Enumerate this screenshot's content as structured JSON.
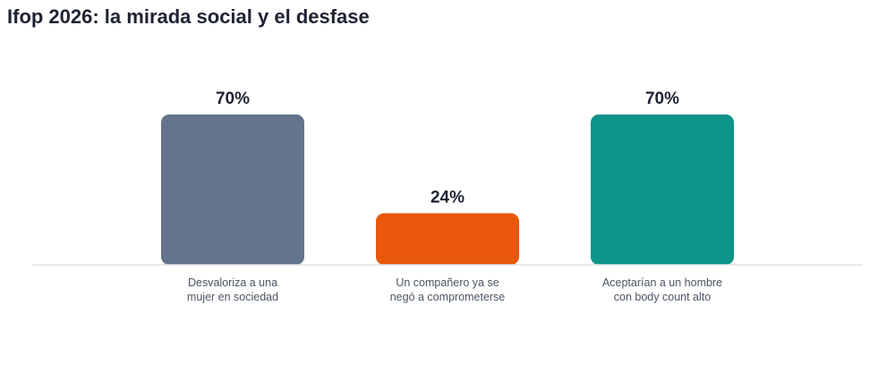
{
  "title": "Ifop 2026: la mirada social y el desfase",
  "chart_data": {
    "type": "bar",
    "title": "Ifop 2026: la mirada social y el desfase",
    "categories": [
      [
        "Desvaloriza a una",
        "mujer en sociedad"
      ],
      [
        "Un compañero ya se",
        "negó a comprometerse"
      ],
      [
        "Aceptarían a un hombre",
        "con body count alto"
      ]
    ],
    "values": [
      70,
      24,
      70
    ],
    "value_labels": [
      "70%",
      "24%",
      "70%"
    ],
    "colors": [
      "#64748b",
      "#ea580c",
      "#0d9488"
    ],
    "ylim": [
      0,
      70
    ],
    "grid": false,
    "legend": "none"
  }
}
